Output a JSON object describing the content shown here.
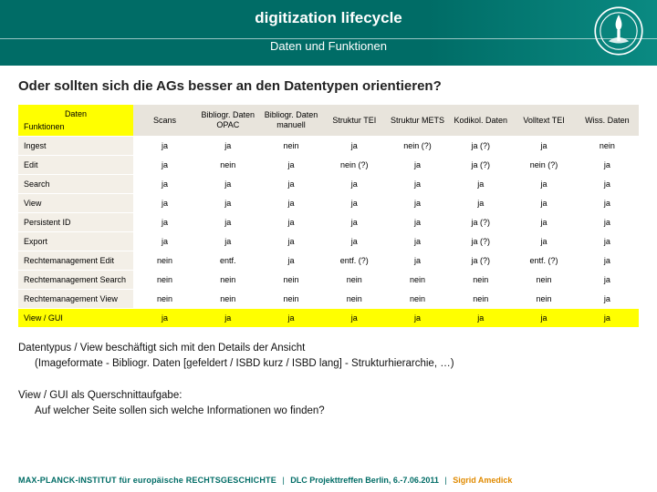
{
  "header": {
    "title": "digitization lifecycle",
    "subtitle": "Daten und Funktionen"
  },
  "question": "Oder sollten sich die AGs besser an den Datentypen orientieren?",
  "table": {
    "corner_top": "Daten",
    "corner_bottom": "Funktionen",
    "columns": [
      "Scans",
      "Bibliogr. Daten OPAC",
      "Bibliogr. Daten manuell",
      "Struktur TEI",
      "Struktur METS",
      "Kodikol. Daten",
      "Volltext TEI",
      "Wiss. Daten"
    ],
    "rows": [
      {
        "label": "Ingest",
        "hl": false,
        "cells": [
          "ja",
          "ja",
          "nein",
          "ja",
          "nein (?)",
          "ja (?)",
          "ja",
          "nein"
        ]
      },
      {
        "label": "Edit",
        "hl": false,
        "cells": [
          "ja",
          "nein",
          "ja",
          "nein (?)",
          "ja",
          "ja (?)",
          "nein (?)",
          "ja"
        ]
      },
      {
        "label": "Search",
        "hl": false,
        "cells": [
          "ja",
          "ja",
          "ja",
          "ja",
          "ja",
          "ja",
          "ja",
          "ja"
        ]
      },
      {
        "label": "View",
        "hl": false,
        "cells": [
          "ja",
          "ja",
          "ja",
          "ja",
          "ja",
          "ja",
          "ja",
          "ja"
        ]
      },
      {
        "label": "Persistent ID",
        "hl": false,
        "cells": [
          "ja",
          "ja",
          "ja",
          "ja",
          "ja",
          "ja (?)",
          "ja",
          "ja"
        ]
      },
      {
        "label": "Export",
        "hl": false,
        "cells": [
          "ja",
          "ja",
          "ja",
          "ja",
          "ja",
          "ja (?)",
          "ja",
          "ja"
        ]
      },
      {
        "label": "Rechtemanagement Edit",
        "hl": false,
        "cells": [
          "nein",
          "entf.",
          "ja",
          "entf. (?)",
          "ja",
          "ja (?)",
          "entf. (?)",
          "ja"
        ]
      },
      {
        "label": "Rechtemanagement Search",
        "hl": false,
        "cells": [
          "nein",
          "nein",
          "nein",
          "nein",
          "nein",
          "nein",
          "nein",
          "ja"
        ]
      },
      {
        "label": "Rechtemanagement View",
        "hl": false,
        "cells": [
          "nein",
          "nein",
          "nein",
          "nein",
          "nein",
          "nein",
          "nein",
          "ja"
        ]
      },
      {
        "label": "View / GUI",
        "hl": true,
        "cells": [
          "ja",
          "ja",
          "ja",
          "ja",
          "ja",
          "ja",
          "ja",
          "ja"
        ]
      }
    ]
  },
  "notes": {
    "p1": "Datentypus / View beschäftigt sich mit den Details der Ansicht",
    "p1b": "(Imageformate - Bibliogr. Daten [gefeldert / ISBD kurz / ISBD lang] - Strukturhierarchie, …)",
    "p2": "View / GUI als Querschnittaufgabe:",
    "p2b": "Auf welcher Seite sollen sich welche Informationen wo finden?"
  },
  "footer": {
    "institute": "MAX-PLANCK-INSTITUT für europäische RECHTSGESCHICHTE",
    "event": "DLC Projekttreffen Berlin, 6.-7.06.2011",
    "author": "Sigrid Amedick"
  },
  "colors": {
    "brand": "#006C66",
    "highlight": "#ffff00",
    "accent": "#e08a00"
  }
}
